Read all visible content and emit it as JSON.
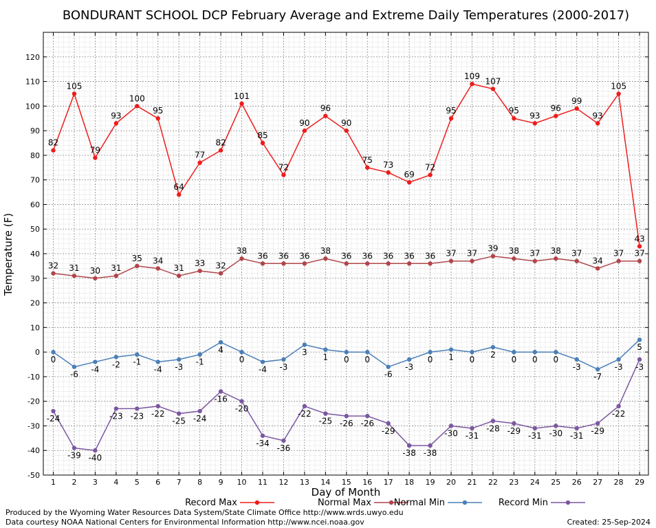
{
  "chart_data": {
    "type": "line",
    "title": "BONDURANT SCHOOL DCP February Average and Extreme Daily Temperatures (2000-2017)",
    "xlabel": "Day of Month",
    "ylabel": "Temperature (F)",
    "x": [
      1,
      2,
      3,
      4,
      5,
      6,
      7,
      8,
      9,
      10,
      11,
      12,
      13,
      14,
      15,
      16,
      17,
      18,
      19,
      20,
      21,
      22,
      23,
      24,
      25,
      26,
      27,
      28,
      29
    ],
    "ylim": [
      -50,
      130
    ],
    "yticks": [
      -50,
      -40,
      -30,
      -20,
      -10,
      0,
      10,
      20,
      30,
      40,
      50,
      60,
      70,
      80,
      90,
      100,
      110,
      120
    ],
    "grid": true,
    "legend_position": "bottom",
    "series": [
      {
        "name": "Record Max",
        "color": "#ee1c1c",
        "label_position": "above",
        "values": [
          82,
          105,
          79,
          93,
          100,
          95,
          64,
          77,
          82,
          101,
          85,
          72,
          90,
          96,
          90,
          75,
          73,
          69,
          72,
          95,
          109,
          107,
          95,
          93,
          96,
          99,
          93,
          105,
          43
        ]
      },
      {
        "name": "Normal Max",
        "color": "#b0454a",
        "label_position": "above",
        "values": [
          32,
          31,
          30,
          31,
          35,
          34,
          31,
          33,
          32,
          38,
          36,
          36,
          36,
          38,
          36,
          36,
          36,
          36,
          36,
          37,
          37,
          39,
          38,
          37,
          38,
          37,
          34,
          37,
          37
        ]
      },
      {
        "name": "Normal Min",
        "color": "#4a7fb8",
        "label_position": "below",
        "values": [
          0,
          -6,
          -4,
          -2,
          -1,
          -4,
          -3,
          -1,
          4,
          0,
          -4,
          -3,
          3,
          1,
          0,
          0,
          -6,
          -3,
          0,
          1,
          0,
          2,
          0,
          0,
          0,
          -3,
          -7,
          -3,
          5
        ]
      },
      {
        "name": "Record Min",
        "color": "#7b57a0",
        "label_position": "below",
        "values": [
          -24,
          -39,
          -40,
          -23,
          -23,
          -22,
          -25,
          -24,
          -16,
          -20,
          -34,
          -36,
          -22,
          -25,
          -26,
          -26,
          -29,
          -38,
          -38,
          -30,
          -31,
          -28,
          -29,
          -31,
          -30,
          -31,
          -29,
          -22,
          -3
        ]
      }
    ]
  },
  "footer": {
    "line1": "Produced by the Wyoming Water Resources Data System/State Climate Office http://www.wrds.uwyo.edu",
    "line2": "Data courtesy NOAA National Centers for Environmental Information http://www.ncei.noaa.gov",
    "created": "Created:  25-Sep-2024"
  }
}
